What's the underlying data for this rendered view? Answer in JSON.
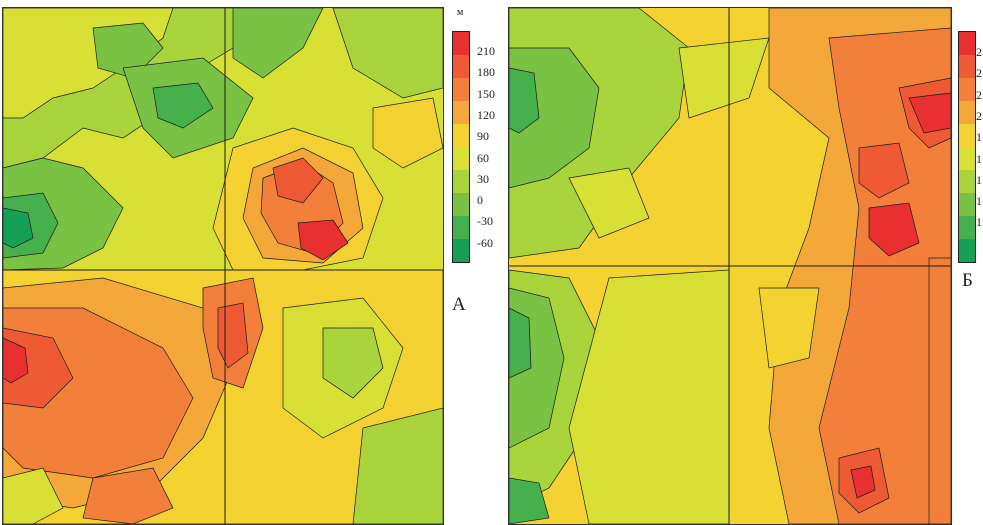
{
  "legend_a": {
    "unit": "м",
    "ticks": [
      "210",
      "180",
      "150",
      "120",
      "90",
      "60",
      "30",
      "0",
      "-30",
      "-60"
    ],
    "colors": [
      "#e83030",
      "#ee5a34",
      "#f2803a",
      "#f5a83a",
      "#f4d232",
      "#d8e036",
      "#a9d43c",
      "#7ac244",
      "#46b04c",
      "#16a055"
    ]
  },
  "legend_b": {
    "ticks": [
      "2",
      "2",
      "2",
      "2",
      "1",
      "1",
      "1",
      "1",
      "1"
    ],
    "colors": [
      "#e83030",
      "#ee5a34",
      "#f2803a",
      "#f5a83a",
      "#f4d232",
      "#d8e036",
      "#a9d43c",
      "#7ac244",
      "#46b04c",
      "#16a055"
    ]
  },
  "label_a": "А",
  "label_b": "Б"
}
